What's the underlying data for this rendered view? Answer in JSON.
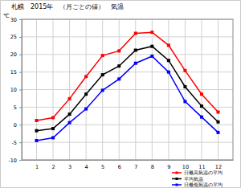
{
  "chart_data": {
    "type": "line",
    "title": "札幌　2015年　（月ごとの値）　気温",
    "y_label": "℃",
    "categories": [
      "1",
      "2",
      "3",
      "4",
      "5",
      "6",
      "7",
      "8",
      "9",
      "10",
      "11",
      "12"
    ],
    "series": [
      {
        "name": "日最高気温の平均",
        "color": "#ff0000",
        "marker": "square",
        "values": [
          1.2,
          2.0,
          7.4,
          13.7,
          19.7,
          21.0,
          26.0,
          26.3,
          22.6,
          15.4,
          8.7,
          3.6
        ]
      },
      {
        "name": "平均気温",
        "color": "#000000",
        "marker": "square",
        "values": [
          -1.7,
          -1.1,
          3.0,
          8.7,
          14.2,
          16.7,
          21.2,
          22.3,
          18.3,
          10.8,
          5.3,
          0.8
        ]
      },
      {
        "name": "日最低気温の平均",
        "color": "#0000ff",
        "marker": "square",
        "values": [
          -4.5,
          -3.7,
          0.6,
          4.5,
          9.8,
          13.0,
          17.5,
          19.5,
          15.0,
          6.6,
          2.2,
          -2.2
        ]
      }
    ],
    "ylim": [
      -10,
      30
    ],
    "yticks": [
      -10,
      -5,
      0,
      5,
      10,
      15,
      20,
      25,
      30
    ],
    "grid": true,
    "legend": "bottom-right"
  }
}
